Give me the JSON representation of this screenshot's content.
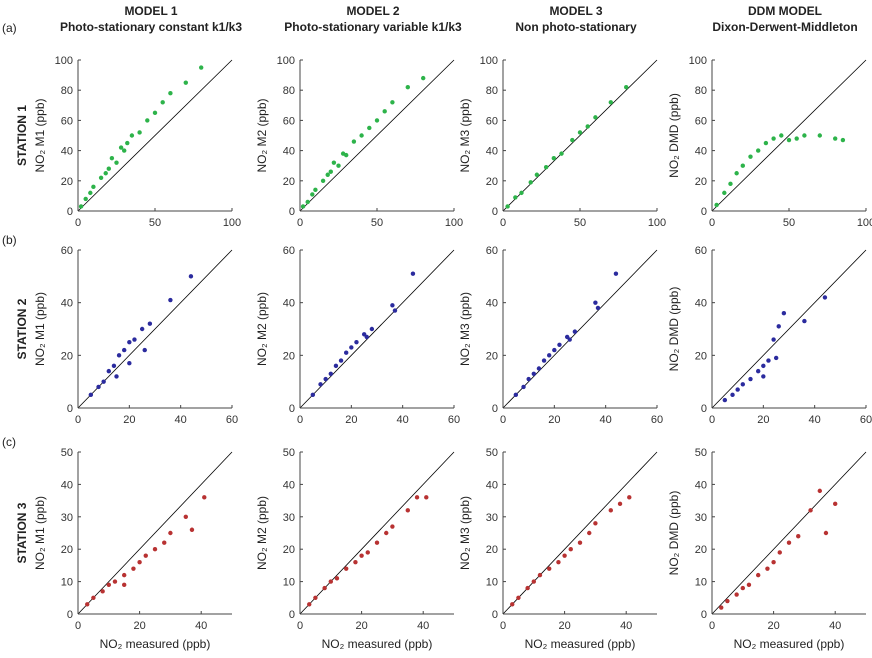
{
  "columns": [
    {
      "title": "MODEL 1",
      "subtitle": "Photo-stationary constant k1/k3"
    },
    {
      "title": "MODEL 2",
      "subtitle": "Photo-stationary variable k1/k3"
    },
    {
      "title": "MODEL 3",
      "subtitle": "Non photo-stationary"
    },
    {
      "title": "DDM MODEL",
      "subtitle": "Dixon-Derwent-Middleton"
    }
  ],
  "rows": [
    {
      "tag": "(a)",
      "label": "STATION 1"
    },
    {
      "tag": "(b)",
      "label": "STATION 2"
    },
    {
      "tag": "(c)",
      "label": "STATION 3"
    }
  ],
  "chart_data": [
    {
      "type": "scatter",
      "ylabel": "NO₂ M1 (ppb)",
      "color": "#2db34a",
      "xlim": [
        0,
        100
      ],
      "ylim": [
        0,
        100
      ],
      "xticks": [
        0,
        50,
        100
      ],
      "yticks": [
        0,
        20,
        40,
        60,
        80,
        100
      ],
      "x": [
        2,
        5,
        8,
        10,
        15,
        18,
        20,
        22,
        25,
        28,
        30,
        32,
        35,
        40,
        45,
        50,
        55,
        60,
        70,
        80
      ],
      "values": [
        3,
        8,
        12,
        16,
        22,
        25,
        28,
        35,
        32,
        42,
        40,
        45,
        50,
        52,
        60,
        65,
        72,
        78,
        85,
        95
      ]
    },
    {
      "type": "scatter",
      "ylabel": "NO₂ M2 (ppb)",
      "color": "#2db34a",
      "xlim": [
        0,
        100
      ],
      "ylim": [
        0,
        100
      ],
      "xticks": [
        0,
        50,
        100
      ],
      "yticks": [
        0,
        20,
        40,
        60,
        80,
        100
      ],
      "x": [
        2,
        5,
        8,
        10,
        15,
        18,
        20,
        22,
        25,
        28,
        30,
        35,
        40,
        45,
        50,
        55,
        60,
        70,
        80
      ],
      "values": [
        3,
        6,
        11,
        14,
        20,
        24,
        26,
        32,
        30,
        38,
        37,
        46,
        50,
        55,
        60,
        66,
        72,
        82,
        88
      ]
    },
    {
      "type": "scatter",
      "ylabel": "NO₂ M3 (ppb)",
      "color": "#2db34a",
      "xlim": [
        0,
        100
      ],
      "ylim": [
        0,
        100
      ],
      "xticks": [
        0,
        50,
        100
      ],
      "yticks": [
        0,
        20,
        40,
        60,
        80,
        100
      ],
      "x": [
        3,
        8,
        12,
        18,
        22,
        28,
        33,
        38,
        45,
        50,
        55,
        60,
        70,
        80
      ],
      "values": [
        3,
        9,
        12,
        19,
        24,
        29,
        35,
        38,
        47,
        52,
        56,
        62,
        72,
        82
      ]
    },
    {
      "type": "scatter",
      "ylabel": "NO₂ DMD (ppb)",
      "color": "#2db34a",
      "xlim": [
        0,
        100
      ],
      "ylim": [
        0,
        100
      ],
      "xticks": [
        0,
        50,
        100
      ],
      "yticks": [
        0,
        20,
        40,
        60,
        80,
        100
      ],
      "x": [
        3,
        8,
        12,
        16,
        20,
        25,
        30,
        35,
        40,
        45,
        50,
        55,
        60,
        70,
        80,
        85
      ],
      "values": [
        4,
        12,
        18,
        25,
        30,
        36,
        40,
        45,
        48,
        50,
        47,
        48,
        50,
        50,
        48,
        47
      ]
    },
    {
      "type": "scatter",
      "ylabel": "NO₂ M1 (ppb)",
      "color": "#2b2b9e",
      "xlim": [
        0,
        60
      ],
      "ylim": [
        0,
        60
      ],
      "xticks": [
        0,
        20,
        40,
        60
      ],
      "yticks": [
        0,
        20,
        40,
        60
      ],
      "x": [
        5,
        8,
        10,
        12,
        14,
        16,
        18,
        20,
        22,
        25,
        26,
        28,
        36,
        44,
        15,
        20
      ],
      "values": [
        5,
        8,
        10,
        14,
        16,
        20,
        22,
        25,
        26,
        30,
        22,
        32,
        41,
        50,
        12,
        17
      ]
    },
    {
      "type": "scatter",
      "ylabel": "NO₂ M2 (ppb)",
      "color": "#2b2b9e",
      "xlim": [
        0,
        60
      ],
      "ylim": [
        0,
        60
      ],
      "xticks": [
        0,
        20,
        40,
        60
      ],
      "yticks": [
        0,
        20,
        40,
        60
      ],
      "x": [
        5,
        8,
        10,
        12,
        14,
        16,
        18,
        20,
        22,
        25,
        26,
        28,
        36,
        44,
        37
      ],
      "values": [
        5,
        9,
        11,
        13,
        16,
        18,
        21,
        23,
        25,
        28,
        27,
        30,
        39,
        51,
        37
      ]
    },
    {
      "type": "scatter",
      "ylabel": "NO₂ M3 (ppb)",
      "color": "#2b2b9e",
      "xlim": [
        0,
        60
      ],
      "ylim": [
        0,
        60
      ],
      "xticks": [
        0,
        20,
        40,
        60
      ],
      "yticks": [
        0,
        20,
        40,
        60
      ],
      "x": [
        5,
        8,
        10,
        12,
        14,
        16,
        18,
        20,
        22,
        25,
        26,
        28,
        36,
        44,
        37
      ],
      "values": [
        5,
        8,
        11,
        13,
        15,
        18,
        20,
        22,
        24,
        27,
        26,
        29,
        40,
        51,
        38
      ]
    },
    {
      "type": "scatter",
      "ylabel": "NO₂ DMD (ppb)",
      "color": "#2b2b9e",
      "xlim": [
        0,
        60
      ],
      "ylim": [
        0,
        60
      ],
      "xticks": [
        0,
        20,
        40,
        60
      ],
      "yticks": [
        0,
        20,
        40,
        60
      ],
      "x": [
        5,
        8,
        10,
        12,
        15,
        18,
        20,
        22,
        25,
        26,
        28,
        36,
        44,
        20,
        24
      ],
      "values": [
        3,
        5,
        7,
        9,
        11,
        14,
        16,
        18,
        19,
        31,
        36,
        33,
        42,
        12,
        26
      ]
    },
    {
      "type": "scatter",
      "ylabel": "NO₂ M1 (ppb)",
      "xlabel": "NO₂ measured (ppb)",
      "color": "#b83232",
      "xlim": [
        0,
        50
      ],
      "ylim": [
        0,
        50
      ],
      "xticks": [
        0,
        20,
        40
      ],
      "yticks": [
        0,
        10,
        20,
        30,
        40,
        50
      ],
      "x": [
        3,
        5,
        8,
        10,
        12,
        15,
        18,
        20,
        22,
        25,
        28,
        30,
        35,
        37,
        41,
        15
      ],
      "values": [
        3,
        5,
        7,
        9,
        10,
        12,
        14,
        16,
        18,
        20,
        22,
        25,
        30,
        26,
        36,
        9
      ]
    },
    {
      "type": "scatter",
      "ylabel": "NO₂ M2 (ppb)",
      "xlabel": "NO₂ measured (ppb)",
      "color": "#b83232",
      "xlim": [
        0,
        50
      ],
      "ylim": [
        0,
        50
      ],
      "xticks": [
        0,
        20,
        40
      ],
      "yticks": [
        0,
        10,
        20,
        30,
        40,
        50
      ],
      "x": [
        3,
        5,
        8,
        10,
        12,
        15,
        18,
        20,
        22,
        25,
        28,
        30,
        35,
        38,
        41
      ],
      "values": [
        3,
        5,
        8,
        10,
        11,
        14,
        16,
        18,
        19,
        22,
        25,
        27,
        32,
        36,
        36
      ]
    },
    {
      "type": "scatter",
      "ylabel": "NO₂ M3 (ppb)",
      "xlabel": "NO₂ measured (ppb)",
      "color": "#b83232",
      "xlim": [
        0,
        50
      ],
      "ylim": [
        0,
        50
      ],
      "xticks": [
        0,
        20,
        40
      ],
      "yticks": [
        0,
        10,
        20,
        30,
        40,
        50
      ],
      "x": [
        3,
        5,
        8,
        10,
        12,
        15,
        18,
        20,
        22,
        25,
        28,
        30,
        35,
        38,
        41
      ],
      "values": [
        3,
        5,
        8,
        10,
        12,
        14,
        16,
        18,
        20,
        22,
        25,
        28,
        32,
        34,
        36
      ]
    },
    {
      "type": "scatter",
      "ylabel": "NO₂ DMD (ppb)",
      "xlabel": "NO₂ measured (ppb)",
      "color": "#b83232",
      "xlim": [
        0,
        50
      ],
      "ylim": [
        0,
        50
      ],
      "xticks": [
        0,
        20,
        40
      ],
      "yticks": [
        0,
        10,
        20,
        30,
        40,
        50
      ],
      "x": [
        3,
        5,
        8,
        10,
        12,
        15,
        18,
        20,
        22,
        25,
        28,
        32,
        35,
        37,
        40
      ],
      "values": [
        2,
        4,
        6,
        8,
        9,
        12,
        14,
        16,
        19,
        22,
        24,
        32,
        38,
        25,
        34
      ]
    }
  ]
}
